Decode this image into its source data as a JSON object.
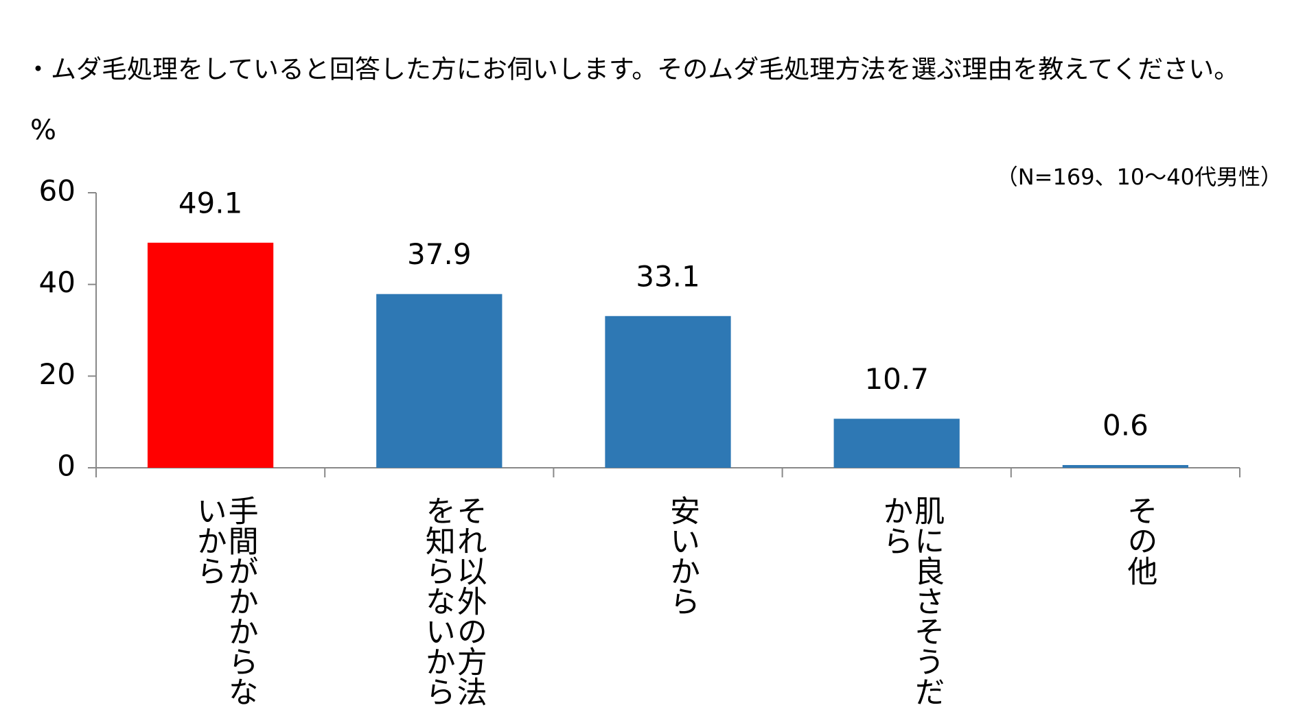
{
  "chart_data": {
    "type": "bar",
    "title": "・ムダ毛処理をしていると回答した方にお伺いします。そのムダ毛処理方法を選ぶ理由を教えてください。",
    "y_axis_label": "%",
    "note": "（N=169、10～40代男性）",
    "categories": [
      "手間がかからないから",
      "それ以外の方法を知らないから",
      "安いから",
      "肌に良さそうだから",
      "その他"
    ],
    "values": [
      49.1,
      37.9,
      33.1,
      10.7,
      0.6
    ],
    "colors": [
      "#ff0000",
      "#2e78b4",
      "#2e78b4",
      "#2e78b4",
      "#2e78b4"
    ],
    "ylim": [
      0,
      60
    ],
    "yticks": [
      0,
      20,
      40,
      60
    ],
    "grid": false
  }
}
